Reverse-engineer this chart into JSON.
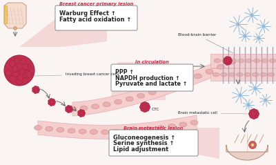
{
  "background_color": "#faf5f3",
  "box1_title": "Breast cancer primary lesion",
  "box1_lines": [
    "Warburg Effect ↑",
    "Fatty acid oxidation ↑"
  ],
  "box2_title": "In circulation",
  "box2_lines": [
    "PPP ↑",
    "NAPDH production ↑",
    "Pyruvate and lactate ↑"
  ],
  "box3_title": "Brain metastatic lesion",
  "box3_lines": [
    "Gluconeogenesis ↑",
    "Serine synthesis ↑",
    "Lipid adjustment"
  ],
  "label_invading": "Invading breast cancer cells",
  "label_ctc": "CTC",
  "label_bbb": "Blood-brain barrier",
  "label_bmc": "Brain metastatic cell",
  "cell_color": "#c23050",
  "cell_inner": "#a02040",
  "vessel_fill": "#f5cece",
  "vessel_edge": "#e8aaaa",
  "rbc_fill": "#e8b0b0",
  "rbc_edge": "#d09090",
  "box_fill": "#ffffff",
  "box_edge": "#888888",
  "title_color": "#c23050",
  "text_color": "#222222",
  "triangle_fill": "#f0c0c0",
  "breast_fill": "#f5d0c0",
  "breast_edge": "#d0a090",
  "brain_fill": "#e8d0c8",
  "brain_edge": "#c0907a",
  "bbb_line": "#88b0d8",
  "star_color": "#90b8d8",
  "arrow_color": "#666666"
}
